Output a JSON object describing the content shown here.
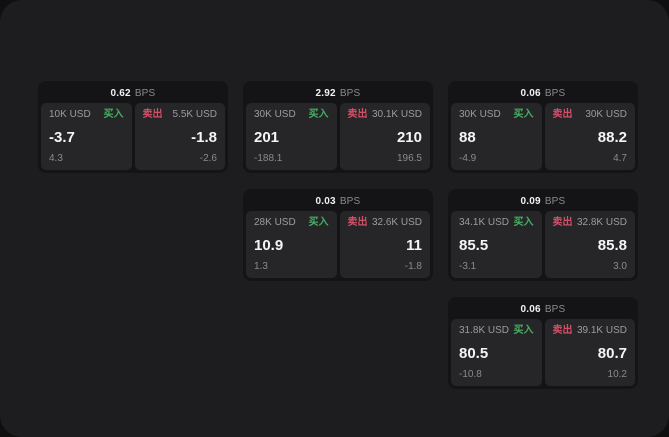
{
  "colors": {
    "screen_bg": "#1d1d1f",
    "card_bg": "#141416",
    "tile_bg": "#262629",
    "buy_green": "#45b061",
    "sell_red": "#d24f68"
  },
  "cards": [
    {
      "bps_value": "0.62",
      "bps_unit": "BPS",
      "buy": {
        "amount": "10K USD",
        "label": "买入",
        "price": "-3.7",
        "delta": "4.3"
      },
      "sell": {
        "label": "卖出",
        "amount": "5.5K USD",
        "price": "-1.8",
        "delta": "-2.6"
      }
    },
    {
      "bps_value": "2.92",
      "bps_unit": "BPS",
      "buy": {
        "amount": "30K USD",
        "label": "买入",
        "price": "201",
        "delta": "-188.1"
      },
      "sell": {
        "label": "卖出",
        "amount": "30.1K USD",
        "price": "210",
        "delta": "196.5"
      }
    },
    {
      "bps_value": "0.06",
      "bps_unit": "BPS",
      "buy": {
        "amount": "30K USD",
        "label": "买入",
        "price": "88",
        "delta": "-4.9"
      },
      "sell": {
        "label": "卖出",
        "amount": "30K USD",
        "price": "88.2",
        "delta": "4.7"
      }
    },
    {
      "bps_value": "0.03",
      "bps_unit": "BPS",
      "buy": {
        "amount": "28K USD",
        "label": "买入",
        "price": "10.9",
        "delta": "1.3"
      },
      "sell": {
        "label": "卖出",
        "amount": "32.6K USD",
        "price": "11",
        "delta": "-1.8"
      }
    },
    {
      "bps_value": "0.09",
      "bps_unit": "BPS",
      "buy": {
        "amount": "34.1K USD",
        "label": "买入",
        "price": "85.5",
        "delta": "-3.1"
      },
      "sell": {
        "label": "卖出",
        "amount": "32.8K USD",
        "price": "85.8",
        "delta": "3.0"
      }
    },
    {
      "bps_value": "0.06",
      "bps_unit": "BPS",
      "buy": {
        "amount": "31.8K USD",
        "label": "买入",
        "price": "80.5",
        "delta": "-10.8"
      },
      "sell": {
        "label": "卖出",
        "amount": "39.1K USD",
        "price": "80.7",
        "delta": "10.2"
      }
    }
  ]
}
